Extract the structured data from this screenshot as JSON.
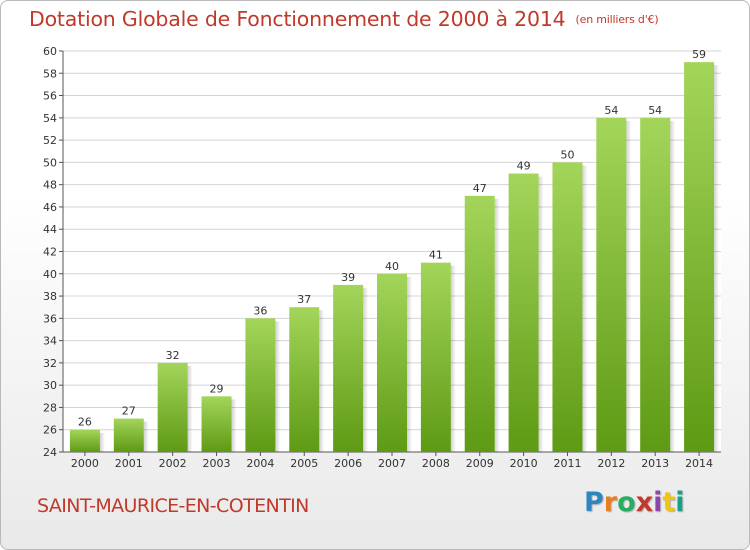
{
  "chart_data": {
    "type": "bar",
    "title": "Dotation Globale de Fonctionnement de 2000 à 2014",
    "subtitle": "(en milliers d'€)",
    "categories": [
      "2000",
      "2001",
      "2002",
      "2003",
      "2004",
      "2005",
      "2006",
      "2007",
      "2008",
      "2009",
      "2010",
      "2011",
      "2012",
      "2013",
      "2014"
    ],
    "values": [
      26,
      27,
      32,
      29,
      36,
      37,
      39,
      40,
      41,
      47,
      49,
      50,
      54,
      54,
      59
    ],
    "ylim": [
      24,
      60
    ],
    "yticks": [
      24,
      26,
      28,
      30,
      32,
      34,
      36,
      38,
      40,
      42,
      44,
      46,
      48,
      50,
      52,
      54,
      56,
      58,
      60
    ],
    "grid": true,
    "bar_color_top": "#a3d55a",
    "bar_color_bottom": "#5e9a14"
  },
  "footer": {
    "commune": "SAINT-MAURICE-EN-COTENTIN",
    "logo": "Proxiti",
    "logo_letters": [
      "P",
      "r",
      "o",
      "x",
      "i",
      "t",
      "i"
    ]
  },
  "colors": {
    "title": "#c0392b",
    "grid": "#d4d4d4"
  }
}
